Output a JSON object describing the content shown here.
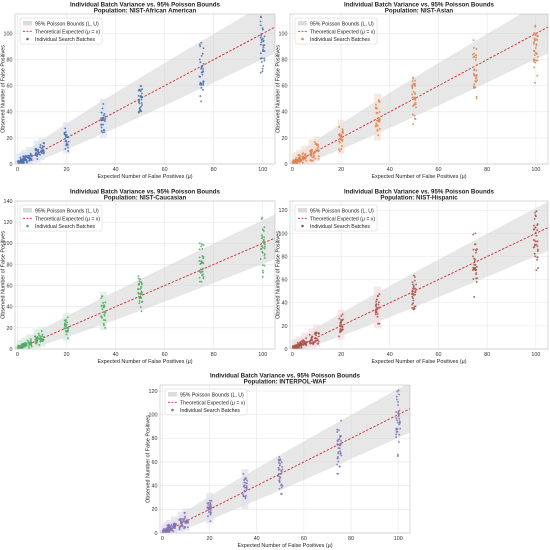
{
  "chart_data": [
    {
      "type": "scatter",
      "title": "Individual Batch Variance vs. 95% Poisson Bounds",
      "subtitle": "Population: NIST-African American",
      "xlabel": "Expected Number of False Positives (μ)",
      "ylabel": "Observed Number of False Positives",
      "xlim": [
        -1,
        105
      ],
      "ylim": [
        0,
        115
      ],
      "xticks": [
        0,
        20,
        40,
        60,
        80,
        100
      ],
      "yticks": [
        0,
        20,
        40,
        60,
        80,
        100
      ],
      "grid": true,
      "legend_position": "top-left",
      "legend": [
        "95% Poisson Bounds (L, U)",
        "Theoretical Expected (μ = x)",
        "Individual Search Batches"
      ],
      "point_color": "#4c72b0",
      "band_tint": "#dde3ee",
      "groups": [
        {
          "x": 1,
          "y_range": [
            0,
            4
          ]
        },
        {
          "x": 2,
          "y_range": [
            0,
            5
          ]
        },
        {
          "x": 3,
          "y_range": [
            1,
            7
          ]
        },
        {
          "x": 5,
          "y_range": [
            1,
            9
          ]
        },
        {
          "x": 8,
          "y_range": [
            3,
            14
          ]
        },
        {
          "x": 10,
          "y_range": [
            5,
            16
          ]
        },
        {
          "x": 20,
          "y_range": [
            10,
            28
          ]
        },
        {
          "x": 35,
          "y_range": [
            22,
            46
          ]
        },
        {
          "x": 50,
          "y_range": [
            33,
            64
          ]
        },
        {
          "x": 75,
          "y_range": [
            48,
            93
          ]
        },
        {
          "x": 100,
          "y_range": [
            70,
            113
          ]
        }
      ]
    },
    {
      "type": "scatter",
      "title": "Individual Batch Variance vs. 95% Poisson Bounds",
      "subtitle": "Population: NIST-Asian",
      "xlabel": "Expected Number of False Positives (μ)",
      "ylabel": "Observed Number of False Positives",
      "xlim": [
        -1,
        105
      ],
      "ylim": [
        0,
        115
      ],
      "xticks": [
        0,
        20,
        40,
        60,
        80,
        100
      ],
      "yticks": [
        0,
        20,
        40,
        60,
        80,
        100
      ],
      "grid": true,
      "legend_position": "top-left",
      "legend": [
        "95% Poisson Bounds (L, U)",
        "Theoretical Expected (μ = x)",
        "Individual Search Batches"
      ],
      "point_color": "#dd8452",
      "band_tint": "#f2e0d4",
      "groups": [
        {
          "x": 1,
          "y_range": [
            0,
            4
          ]
        },
        {
          "x": 2,
          "y_range": [
            0,
            5
          ]
        },
        {
          "x": 3,
          "y_range": [
            1,
            7
          ]
        },
        {
          "x": 5,
          "y_range": [
            1,
            10
          ]
        },
        {
          "x": 8,
          "y_range": [
            2,
            15
          ]
        },
        {
          "x": 10,
          "y_range": [
            4,
            17
          ]
        },
        {
          "x": 20,
          "y_range": [
            10,
            30
          ]
        },
        {
          "x": 35,
          "y_range": [
            20,
            50
          ]
        },
        {
          "x": 50,
          "y_range": [
            30,
            70
          ]
        },
        {
          "x": 75,
          "y_range": [
            45,
            95
          ]
        },
        {
          "x": 100,
          "y_range": [
            60,
            112
          ]
        }
      ]
    },
    {
      "type": "scatter",
      "title": "Individual Batch Variance vs. 95% Poisson Bounds",
      "subtitle": "Population: NIST-Caucasian",
      "xlabel": "Expected Number of False Positives (μ)",
      "ylabel": "Observed Number of False Positives",
      "xlim": [
        -1,
        105
      ],
      "ylim": [
        0,
        140
      ],
      "xticks": [
        0,
        20,
        40,
        60,
        80,
        100
      ],
      "yticks": [
        0,
        20,
        40,
        60,
        80,
        100,
        120,
        140
      ],
      "grid": true,
      "legend_position": "top-left",
      "legend": [
        "95% Poisson Bounds (L, U)",
        "Theoretical Expected (μ = x)",
        "Individual Search Batches"
      ],
      "point_color": "#55a868",
      "band_tint": "#d8ecdc",
      "groups": [
        {
          "x": 1,
          "y_range": [
            0,
            4
          ]
        },
        {
          "x": 2,
          "y_range": [
            0,
            5
          ]
        },
        {
          "x": 3,
          "y_range": [
            1,
            7
          ]
        },
        {
          "x": 5,
          "y_range": [
            1,
            10
          ]
        },
        {
          "x": 8,
          "y_range": [
            3,
            15
          ]
        },
        {
          "x": 10,
          "y_range": [
            4,
            17
          ]
        },
        {
          "x": 20,
          "y_range": [
            10,
            30
          ]
        },
        {
          "x": 35,
          "y_range": [
            20,
            50
          ]
        },
        {
          "x": 50,
          "y_range": [
            32,
            70
          ]
        },
        {
          "x": 75,
          "y_range": [
            50,
            100
          ]
        },
        {
          "x": 100,
          "y_range": [
            68,
            132
          ]
        }
      ]
    },
    {
      "type": "scatter",
      "title": "Individual Batch Variance vs. 95% Poisson Bounds",
      "subtitle": "Population: NIST-Hispanic",
      "xlabel": "Expected Number of False Positives (μ)",
      "ylabel": "Observed Number of False Positives",
      "xlim": [
        -1,
        105
      ],
      "ylim": [
        0,
        128
      ],
      "xticks": [
        0,
        20,
        40,
        60,
        80,
        100
      ],
      "yticks": [
        0,
        20,
        40,
        60,
        80,
        100,
        120
      ],
      "grid": true,
      "legend_position": "top-left",
      "legend": [
        "95% Poisson Bounds (L, U)",
        "Theoretical Expected (μ = x)",
        "Individual Search Batches"
      ],
      "point_color": "#8c5a44",
      "accent_color": "#c44e52",
      "band_tint": "#f2dde1",
      "groups": [
        {
          "x": 1,
          "y_range": [
            0,
            4
          ]
        },
        {
          "x": 2,
          "y_range": [
            0,
            5
          ]
        },
        {
          "x": 3,
          "y_range": [
            1,
            7
          ]
        },
        {
          "x": 5,
          "y_range": [
            1,
            10
          ]
        },
        {
          "x": 8,
          "y_range": [
            3,
            14
          ]
        },
        {
          "x": 10,
          "y_range": [
            4,
            17
          ]
        },
        {
          "x": 20,
          "y_range": [
            10,
            30
          ]
        },
        {
          "x": 35,
          "y_range": [
            20,
            50
          ]
        },
        {
          "x": 50,
          "y_range": [
            30,
            65
          ]
        },
        {
          "x": 75,
          "y_range": [
            45,
            100
          ]
        },
        {
          "x": 100,
          "y_range": [
            60,
            122
          ]
        }
      ]
    },
    {
      "type": "scatter",
      "title": "Individual Batch Variance vs. 95% Poisson Bounds",
      "subtitle": "Population: INTERPOL-WAF",
      "xlabel": "Expected Number of False Positives (μ)",
      "ylabel": "Observed Number of False Positives",
      "xlim": [
        -1,
        105
      ],
      "ylim": [
        0,
        125
      ],
      "xticks": [
        0,
        20,
        40,
        60,
        80,
        100
      ],
      "yticks": [
        0,
        20,
        40,
        60,
        80,
        100,
        120
      ],
      "grid": true,
      "legend_position": "top-left",
      "legend": [
        "95% Poisson Bounds (L, U)",
        "Theoretical Expected (μ = x)",
        "Individual Search Batches"
      ],
      "point_color": "#8172b3",
      "band_tint": "#e2def0",
      "groups": [
        {
          "x": 1,
          "y_range": [
            0,
            4
          ]
        },
        {
          "x": 2,
          "y_range": [
            0,
            5
          ]
        },
        {
          "x": 3,
          "y_range": [
            1,
            7
          ]
        },
        {
          "x": 5,
          "y_range": [
            1,
            10
          ]
        },
        {
          "x": 8,
          "y_range": [
            3,
            14
          ]
        },
        {
          "x": 10,
          "y_range": [
            4,
            17
          ]
        },
        {
          "x": 20,
          "y_range": [
            10,
            30
          ]
        },
        {
          "x": 35,
          "y_range": [
            22,
            50
          ]
        },
        {
          "x": 50,
          "y_range": [
            33,
            65
          ]
        },
        {
          "x": 75,
          "y_range": [
            50,
            95
          ]
        },
        {
          "x": 100,
          "y_range": [
            65,
            125
          ]
        }
      ]
    }
  ],
  "colors": {
    "band": "#d3d3d3",
    "line": "#d62728",
    "grid": "#e6e6e6",
    "frame": "#bfbfbf"
  }
}
